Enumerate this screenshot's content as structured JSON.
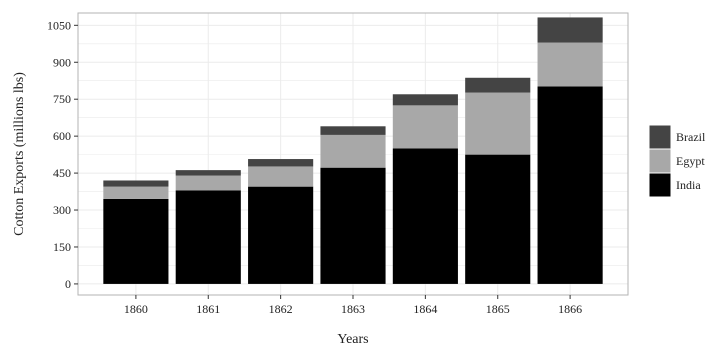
{
  "chart_data": {
    "type": "bar",
    "stacked": true,
    "categories": [
      "1860",
      "1861",
      "1862",
      "1863",
      "1864",
      "1865",
      "1866"
    ],
    "series": [
      {
        "name": "India",
        "color": "#000000",
        "values": [
          345,
          380,
          395,
          472,
          550,
          525,
          802
        ]
      },
      {
        "name": "Egypt",
        "color": "#a8a8a8",
        "values": [
          50,
          60,
          82,
          133,
          175,
          252,
          178
        ]
      },
      {
        "name": "Brazil",
        "color": "#444444",
        "values": [
          25,
          22,
          30,
          35,
          45,
          60,
          102
        ]
      }
    ],
    "xlabel": "Years",
    "ylabel": "Cotton Exports (millions lbs)",
    "ylim": [
      -45,
      1100
    ],
    "yticks": [
      0,
      150,
      300,
      450,
      600,
      750,
      900,
      1050
    ],
    "legend_order": [
      "Brazil",
      "Egypt",
      "India"
    ],
    "legend_position": "right",
    "grid": true,
    "panel_background": "#ffffff",
    "gridline_color": "#ebebeb"
  }
}
